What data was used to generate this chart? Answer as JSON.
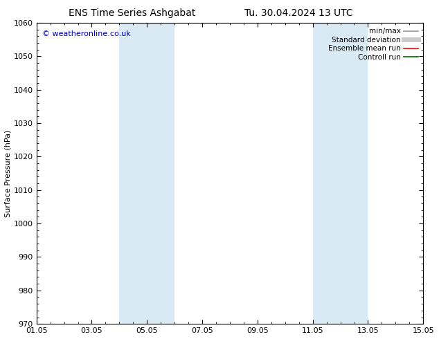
{
  "title_left": "ENS Time Series Ashgabat",
  "title_right": "Tu. 30.04.2024 13 UTC",
  "ylabel": "Surface Pressure (hPa)",
  "ylim": [
    970,
    1060
  ],
  "yticks": [
    970,
    980,
    990,
    1000,
    1010,
    1020,
    1030,
    1040,
    1050,
    1060
  ],
  "xlim_num": [
    0,
    14
  ],
  "xtick_positions": [
    0,
    2,
    4,
    6,
    8,
    10,
    12,
    14
  ],
  "xtick_labels": [
    "01.05",
    "03.05",
    "05.05",
    "07.05",
    "09.05",
    "11.05",
    "13.05",
    "15.05"
  ],
  "shaded_bands": [
    {
      "x_start": 3.0,
      "x_end": 5.0
    },
    {
      "x_start": 10.0,
      "x_end": 12.0
    }
  ],
  "shaded_color": "#daeaf5",
  "watermark_text": "© weatheronline.co.uk",
  "watermark_color": "#0000bb",
  "bg_color": "#ffffff",
  "legend_items": [
    {
      "label": "min/max",
      "color": "#999999",
      "lw": 1.2,
      "style": "solid"
    },
    {
      "label": "Standard deviation",
      "color": "#cccccc",
      "lw": 5,
      "style": "solid"
    },
    {
      "label": "Ensemble mean run",
      "color": "#ff0000",
      "lw": 1.2,
      "style": "solid"
    },
    {
      "label": "Controll run",
      "color": "#006600",
      "lw": 1.2,
      "style": "solid"
    }
  ],
  "tick_direction": "in",
  "font_size_title": 10,
  "font_size_axis": 8,
  "font_size_legend": 7.5,
  "font_size_watermark": 8
}
